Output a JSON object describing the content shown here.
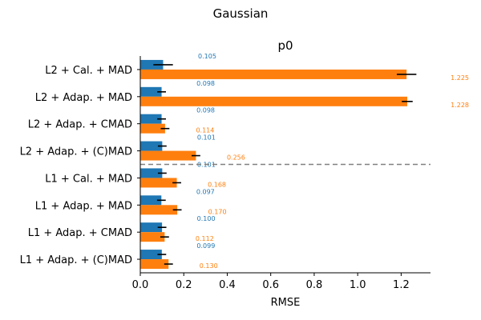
{
  "chart_data": {
    "type": "bar",
    "orientation": "horizontal",
    "suptitle": "Gaussian",
    "title": "p0",
    "xlabel": "RMSE",
    "ylabel": "",
    "xlim": [
      0,
      1.335
    ],
    "xticks": [
      0.0,
      0.2,
      0.4,
      0.6,
      0.8,
      1.0,
      1.2
    ],
    "xtick_labels": [
      "0.0",
      "0.2",
      "0.4",
      "0.6",
      "0.8",
      "1.0",
      "1.2"
    ],
    "categories": [
      "L2 + Cal. + MAD",
      "L2 + Adap. + MAD",
      "L2 + Adap. + CMAD",
      "L2 + Adap. + (C)MAD",
      "L1 + Cal. + MAD",
      "L1 + Adap. + MAD",
      "L1 + Adap. + CMAD",
      "L1 + Adap. + (C)MAD"
    ],
    "series": [
      {
        "color": "#1f77b4",
        "values": [
          0.105,
          0.098,
          0.098,
          0.101,
          0.101,
          0.097,
          0.1,
          0.099
        ],
        "errors": [
          0.045,
          0.02,
          0.02,
          0.02,
          0.02,
          0.02,
          0.02,
          0.02
        ],
        "value_labels": [
          "0.105",
          "0.098",
          "0.098",
          "0.101",
          "0.101",
          "0.097",
          "0.100",
          "0.099"
        ]
      },
      {
        "color": "#ff7f0e",
        "values": [
          1.225,
          1.228,
          0.114,
          0.256,
          0.168,
          0.17,
          0.112,
          0.13
        ],
        "errors": [
          0.045,
          0.025,
          0.02,
          0.02,
          0.02,
          0.02,
          0.02,
          0.02
        ],
        "value_labels": [
          "1.225",
          "1.228",
          "0.114",
          "0.256",
          "0.168",
          "0.170",
          "0.112",
          "0.130"
        ]
      }
    ],
    "separator_after_index": 3,
    "separator_color": "#808080",
    "legend": "none",
    "grid": false
  }
}
